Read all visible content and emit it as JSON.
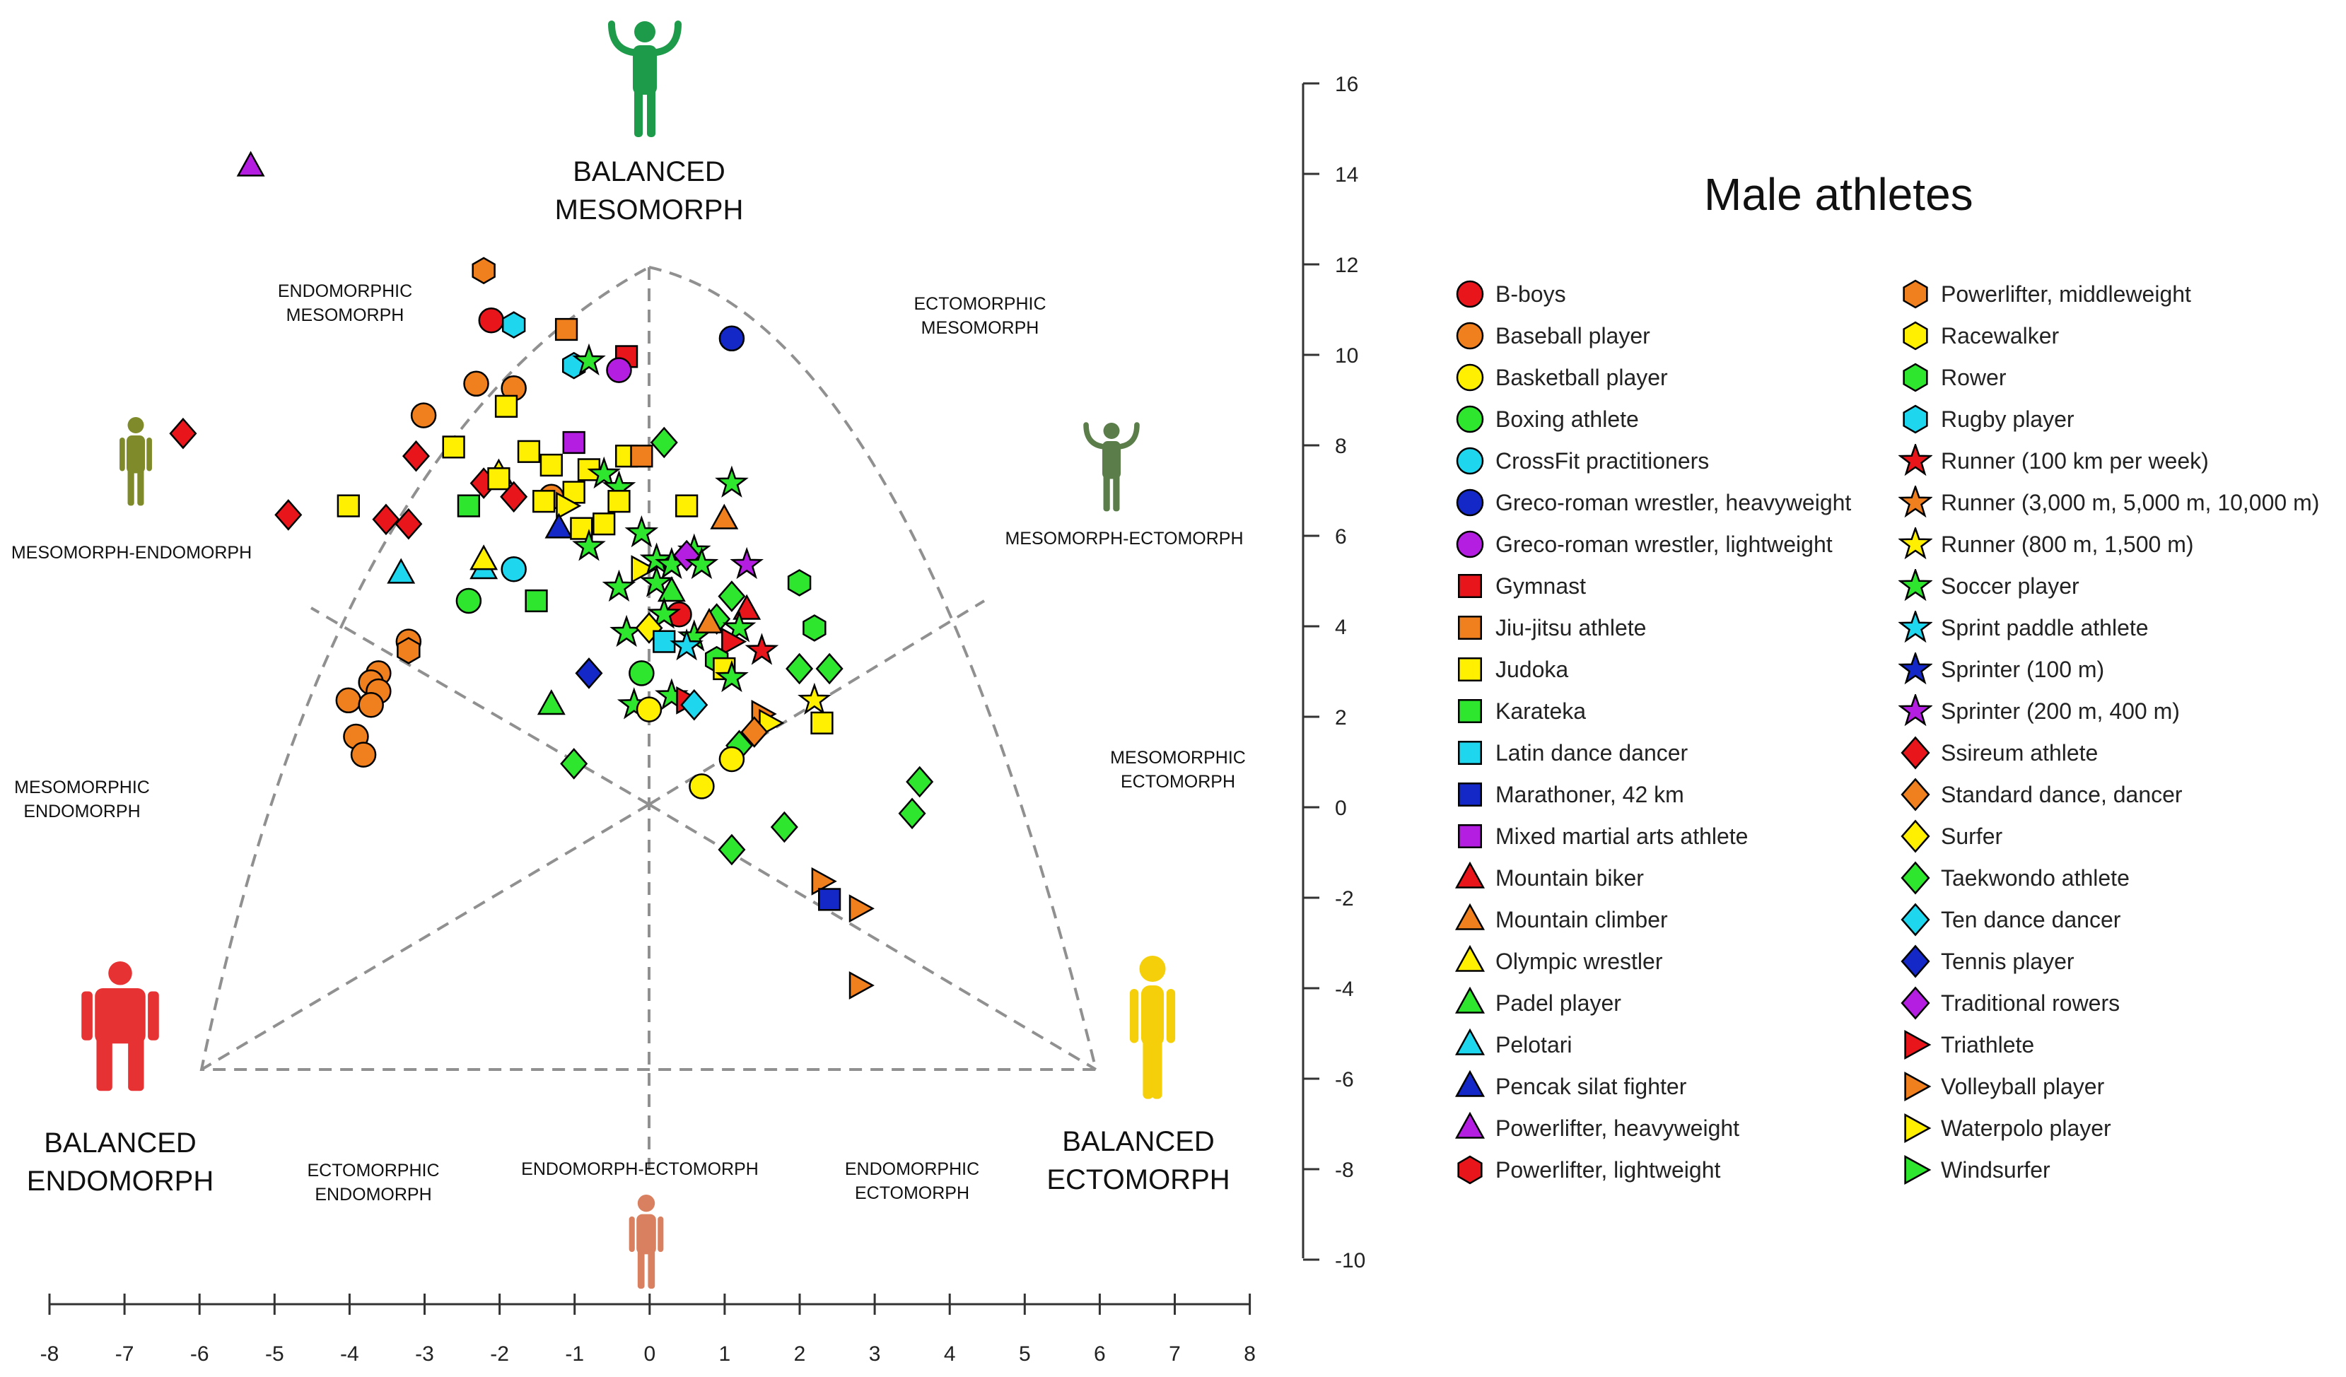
{
  "chart_data": {
    "type": "scatter",
    "title": "Male athletes",
    "xlim": [
      -8,
      8
    ],
    "ylim": [
      -10,
      16
    ],
    "x_ticks": [
      "-8",
      "-7",
      "-6",
      "-5",
      "-4",
      "-3",
      "-2",
      "-1",
      "0",
      "1",
      "2",
      "3",
      "4",
      "5",
      "6",
      "7",
      "8"
    ],
    "y_ticks": [
      "16",
      "14",
      "12",
      "10",
      "8",
      "6",
      "4",
      "2",
      "0",
      "-2",
      "-4",
      "-6",
      "-8",
      "-10"
    ],
    "somatotype_labels": {
      "balanced_mesomorph": [
        "BALANCED",
        "MESOMORPH"
      ],
      "balanced_endomorph": [
        "BALANCED",
        "ENDOMORPH"
      ],
      "balanced_ectomorph": [
        "BALANCED",
        "ECTOMORPH"
      ],
      "endomorphic_mesomorph": [
        "ENDOMORPHIC",
        "MESOMORPH"
      ],
      "ectomorphic_mesomorph": [
        "ECTOMORPHIC",
        "MESOMORPH"
      ],
      "mesomorph_endomorph": "MESOMORPH-ENDOMORPH",
      "mesomorph_ectomorph": "MESOMORPH-ECTOMORPH",
      "mesomorphic_endomorph": [
        "MESOMORPHIC",
        "ENDOMORPH"
      ],
      "mesomorphic_ectomorph": [
        "MESOMORPHIC",
        "ECTOMORPH"
      ],
      "ectomorphic_endomorph": [
        "ECTOMORPHIC",
        "ENDOMORPH"
      ],
      "endomorph_ectomorph": "ENDOMORPH-ECTOMORPH",
      "endomorphic_ectomorph": [
        "ENDOMORPHIC",
        "ECTOMORPH"
      ]
    },
    "figure_colors": {
      "mesomorph": "#1e9b4a",
      "endomorph": "#e63232",
      "ectomorph": "#f5d00a",
      "meso_endo": "#7f8a2a",
      "meso_ecto": "#5a7d4a",
      "endo_ecto": "#d98060"
    },
    "legend": [
      {
        "label": "B-boys",
        "shape": "circle",
        "color": "#e8161b"
      },
      {
        "label": "Baseball player",
        "shape": "circle",
        "color": "#f07f1e"
      },
      {
        "label": "Basketball player",
        "shape": "circle",
        "color": "#ffef00"
      },
      {
        "label": "Boxing athlete",
        "shape": "circle",
        "color": "#2ee62e"
      },
      {
        "label": "CrossFit practitioners",
        "shape": "circle",
        "color": "#1fd6ef"
      },
      {
        "label": "Greco-roman wrestler, heavyweight",
        "shape": "circle",
        "color": "#1428c8"
      },
      {
        "label": "Greco-roman wrestler, lightweight",
        "shape": "circle",
        "color": "#b41ee1"
      },
      {
        "label": "Gymnast",
        "shape": "square",
        "color": "#e8161b"
      },
      {
        "label": "Jiu-jitsu athlete",
        "shape": "square",
        "color": "#f07f1e"
      },
      {
        "label": "Judoka",
        "shape": "square",
        "color": "#ffef00"
      },
      {
        "label": "Karateka",
        "shape": "square",
        "color": "#2ee62e"
      },
      {
        "label": "Latin dance dancer",
        "shape": "square",
        "color": "#1fd6ef"
      },
      {
        "label": "Marathoner, 42 km",
        "shape": "square",
        "color": "#1428c8"
      },
      {
        "label": "Mixed martial arts athlete",
        "shape": "square",
        "color": "#b41ee1"
      },
      {
        "label": "Mountain biker",
        "shape": "triangle",
        "color": "#e8161b"
      },
      {
        "label": "Mountain climber",
        "shape": "triangle",
        "color": "#f07f1e"
      },
      {
        "label": "Olympic wrestler",
        "shape": "triangle",
        "color": "#ffef00"
      },
      {
        "label": "Padel player",
        "shape": "triangle",
        "color": "#2ee62e"
      },
      {
        "label": "Pelotari",
        "shape": "triangle",
        "color": "#1fd6ef"
      },
      {
        "label": "Pencak silat fighter",
        "shape": "triangle",
        "color": "#1428c8"
      },
      {
        "label": "Powerlifter, heavyweight",
        "shape": "triangle",
        "color": "#b41ee1"
      },
      {
        "label": "Powerlifter, lightweight",
        "shape": "hexagon",
        "color": "#e8161b"
      },
      {
        "label": "Powerlifter, middleweight",
        "shape": "hexagon",
        "color": "#f07f1e"
      },
      {
        "label": "Racewalker",
        "shape": "hexagon",
        "color": "#ffef00"
      },
      {
        "label": "Rower",
        "shape": "hexagon",
        "color": "#2ee62e"
      },
      {
        "label": "Rugby player",
        "shape": "hexagon",
        "color": "#1fd6ef"
      },
      {
        "label": "Runner (100 km per week)",
        "shape": "star",
        "color": "#e8161b"
      },
      {
        "label": "Runner (3,000 m, 5,000 m, 10,000 m)",
        "shape": "star",
        "color": "#f07f1e"
      },
      {
        "label": "Runner (800 m, 1,500 m)",
        "shape": "star",
        "color": "#ffef00"
      },
      {
        "label": "Soccer player",
        "shape": "star",
        "color": "#2ee62e"
      },
      {
        "label": "Sprint paddle athlete",
        "shape": "star",
        "color": "#1fd6ef"
      },
      {
        "label": "Sprinter (100 m)",
        "shape": "star",
        "color": "#1428c8"
      },
      {
        "label": "Sprinter (200 m, 400 m)",
        "shape": "star",
        "color": "#b41ee1"
      },
      {
        "label": "Ssireum athlete",
        "shape": "diamond",
        "color": "#e8161b"
      },
      {
        "label": "Standard dance, dancer",
        "shape": "diamond",
        "color": "#f07f1e"
      },
      {
        "label": "Surfer",
        "shape": "diamond",
        "color": "#ffef00"
      },
      {
        "label": "Taekwondo athlete",
        "shape": "diamond",
        "color": "#2ee62e"
      },
      {
        "label": "Ten dance dancer",
        "shape": "diamond",
        "color": "#1fd6ef"
      },
      {
        "label": "Tennis player",
        "shape": "diamond",
        "color": "#1428c8"
      },
      {
        "label": "Traditional rowers",
        "shape": "diamond",
        "color": "#b41ee1"
      },
      {
        "label": "Triathlete",
        "shape": "tri-right",
        "color": "#e8161b"
      },
      {
        "label": "Volleyball player",
        "shape": "tri-right",
        "color": "#f07f1e"
      },
      {
        "label": "Waterpolo player",
        "shape": "tri-right",
        "color": "#ffef00"
      },
      {
        "label": "Windsurfer",
        "shape": "tri-right",
        "color": "#2ee62e"
      }
    ],
    "points": [
      [
        -5.3,
        14.1,
        "triangle",
        "#b41ee1"
      ],
      [
        -2.2,
        11.8,
        "hexagon",
        "#f07f1e"
      ],
      [
        -2.1,
        10.7,
        "circle",
        "#e8161b"
      ],
      [
        -1.8,
        10.6,
        "hexagon",
        "#1fd6ef"
      ],
      [
        -1.1,
        10.5,
        "square",
        "#f07f1e"
      ],
      [
        -1.0,
        9.7,
        "hexagon",
        "#1fd6ef"
      ],
      [
        -0.8,
        9.8,
        "star",
        "#2ee62e"
      ],
      [
        -0.3,
        9.9,
        "square",
        "#e8161b"
      ],
      [
        -0.4,
        9.6,
        "circle",
        "#b41ee1"
      ],
      [
        1.1,
        10.3,
        "circle",
        "#1428c8"
      ],
      [
        -2.3,
        9.3,
        "circle",
        "#f07f1e"
      ],
      [
        -1.8,
        9.2,
        "circle",
        "#f07f1e"
      ],
      [
        -3.0,
        8.6,
        "circle",
        "#f07f1e"
      ],
      [
        -6.2,
        8.2,
        "diamond",
        "#e8161b"
      ],
      [
        -3.1,
        7.7,
        "diamond",
        "#e8161b"
      ],
      [
        -2.6,
        7.9,
        "square",
        "#ffef00"
      ],
      [
        -1.9,
        8.8,
        "square",
        "#ffef00"
      ],
      [
        -1.6,
        7.8,
        "square",
        "#ffef00"
      ],
      [
        -1.0,
        8.0,
        "square",
        "#b41ee1"
      ],
      [
        -1.3,
        7.5,
        "square",
        "#ffef00"
      ],
      [
        -0.8,
        7.4,
        "square",
        "#ffef00"
      ],
      [
        -0.3,
        7.7,
        "square",
        "#ffef00"
      ],
      [
        -0.1,
        7.7,
        "square",
        "#f07f1e"
      ],
      [
        0.2,
        8.0,
        "diamond",
        "#2ee62e"
      ],
      [
        -2.0,
        7.3,
        "triangle",
        "#ffef00"
      ],
      [
        -2.2,
        7.1,
        "diamond",
        "#e8161b"
      ],
      [
        -2.0,
        7.2,
        "square",
        "#ffef00"
      ],
      [
        -1.8,
        6.8,
        "diamond",
        "#e8161b"
      ],
      [
        -1.3,
        6.8,
        "circle",
        "#f07f1e"
      ],
      [
        -1.4,
        6.7,
        "square",
        "#ffef00"
      ],
      [
        -1.0,
        6.9,
        "square",
        "#ffef00"
      ],
      [
        -1.1,
        6.6,
        "tri-right",
        "#ffef00"
      ],
      [
        -0.6,
        7.3,
        "star",
        "#2ee62e"
      ],
      [
        -0.4,
        7.0,
        "star",
        "#2ee62e"
      ],
      [
        -0.4,
        6.7,
        "square",
        "#ffef00"
      ],
      [
        1.1,
        7.1,
        "star",
        "#2ee62e"
      ],
      [
        0.5,
        6.6,
        "square",
        "#ffef00"
      ],
      [
        1.0,
        6.3,
        "triangle",
        "#f07f1e"
      ],
      [
        -2.4,
        6.6,
        "square",
        "#2ee62e"
      ],
      [
        -4.0,
        6.6,
        "square",
        "#ffef00"
      ],
      [
        -4.8,
        6.4,
        "diamond",
        "#e8161b"
      ],
      [
        -3.5,
        6.3,
        "diamond",
        "#e8161b"
      ],
      [
        -3.2,
        6.2,
        "diamond",
        "#e8161b"
      ],
      [
        -1.2,
        6.1,
        "triangle",
        "#1428c8"
      ],
      [
        -0.9,
        6.1,
        "square",
        "#ffef00"
      ],
      [
        -0.6,
        6.2,
        "square",
        "#ffef00"
      ],
      [
        -0.1,
        6.0,
        "star",
        "#2ee62e"
      ],
      [
        -0.8,
        5.7,
        "star",
        "#2ee62e"
      ],
      [
        -3.3,
        5.1,
        "triangle",
        "#1fd6ef"
      ],
      [
        -2.2,
        5.2,
        "triangle",
        "#1fd6ef"
      ],
      [
        -1.8,
        5.2,
        "circle",
        "#1fd6ef"
      ],
      [
        -2.2,
        5.4,
        "triangle",
        "#ffef00"
      ],
      [
        -0.4,
        4.8,
        "star",
        "#2ee62e"
      ],
      [
        -0.1,
        5.2,
        "tri-right",
        "#ffef00"
      ],
      [
        0.1,
        5.4,
        "star",
        "#2ee62e"
      ],
      [
        0.3,
        5.3,
        "star",
        "#2ee62e"
      ],
      [
        0.6,
        5.6,
        "star",
        "#2ee62e"
      ],
      [
        0.5,
        5.5,
        "diamond",
        "#b41ee1"
      ],
      [
        1.3,
        5.3,
        "star",
        "#b41ee1"
      ],
      [
        0.7,
        5.3,
        "star",
        "#2ee62e"
      ],
      [
        2.0,
        4.9,
        "hexagon",
        "#2ee62e"
      ],
      [
        -2.4,
        4.5,
        "circle",
        "#2ee62e"
      ],
      [
        -1.5,
        4.5,
        "square",
        "#2ee62e"
      ],
      [
        0.1,
        4.9,
        "star",
        "#2ee62e"
      ],
      [
        0.3,
        4.7,
        "triangle",
        "#2ee62e"
      ],
      [
        1.1,
        4.6,
        "diamond",
        "#2ee62e"
      ],
      [
        1.3,
        4.3,
        "triangle",
        "#e8161b"
      ],
      [
        0.4,
        4.2,
        "circle",
        "#e8161b"
      ],
      [
        0.2,
        4.2,
        "star",
        "#2ee62e"
      ],
      [
        0.9,
        4.1,
        "diamond",
        "#2ee62e"
      ],
      [
        1.2,
        3.9,
        "star",
        "#2ee62e"
      ],
      [
        -0.3,
        3.8,
        "star",
        "#2ee62e"
      ],
      [
        0.0,
        3.9,
        "diamond",
        "#ffef00"
      ],
      [
        0.6,
        3.7,
        "star",
        "#2ee62e"
      ],
      [
        0.8,
        4.0,
        "triangle",
        "#f07f1e"
      ],
      [
        2.2,
        3.9,
        "hexagon",
        "#2ee62e"
      ],
      [
        -3.2,
        3.6,
        "circle",
        "#f07f1e"
      ],
      [
        -3.2,
        3.4,
        "hexagon",
        "#f07f1e"
      ],
      [
        0.2,
        3.6,
        "square",
        "#1fd6ef"
      ],
      [
        0.5,
        3.5,
        "star",
        "#1fd6ef"
      ],
      [
        1.1,
        3.6,
        "tri-right",
        "#e8161b"
      ],
      [
        1.5,
        3.4,
        "star",
        "#e8161b"
      ],
      [
        0.9,
        3.2,
        "hexagon",
        "#2ee62e"
      ],
      [
        1.0,
        3.0,
        "square",
        "#ffef00"
      ],
      [
        2.0,
        3.0,
        "diamond",
        "#2ee62e"
      ],
      [
        2.4,
        3.0,
        "diamond",
        "#2ee62e"
      ],
      [
        -0.8,
        2.9,
        "diamond",
        "#1428c8"
      ],
      [
        -0.1,
        2.9,
        "circle",
        "#2ee62e"
      ],
      [
        1.1,
        2.8,
        "star",
        "#2ee62e"
      ],
      [
        -3.6,
        2.9,
        "circle",
        "#f07f1e"
      ],
      [
        -3.7,
        2.7,
        "circle",
        "#f07f1e"
      ],
      [
        -3.6,
        2.5,
        "circle",
        "#f07f1e"
      ],
      [
        -4.0,
        2.3,
        "circle",
        "#f07f1e"
      ],
      [
        -3.7,
        2.2,
        "circle",
        "#f07f1e"
      ],
      [
        0.3,
        2.4,
        "star",
        "#2ee62e"
      ],
      [
        0.5,
        2.3,
        "tri-right",
        "#e8161b"
      ],
      [
        0.6,
        2.2,
        "diamond",
        "#1fd6ef"
      ],
      [
        -0.2,
        2.2,
        "star",
        "#2ee62e"
      ],
      [
        0.0,
        2.1,
        "circle",
        "#ffef00"
      ],
      [
        -1.3,
        2.2,
        "triangle",
        "#2ee62e"
      ],
      [
        2.2,
        2.3,
        "star",
        "#ffef00"
      ],
      [
        1.5,
        2.0,
        "tri-right",
        "#f07f1e"
      ],
      [
        1.6,
        1.8,
        "tri-right",
        "#ffef00"
      ],
      [
        2.3,
        1.8,
        "square",
        "#ffef00"
      ],
      [
        1.4,
        1.6,
        "diamond",
        "#f07f1e"
      ],
      [
        1.2,
        1.3,
        "diamond",
        "#2ee62e"
      ],
      [
        -3.9,
        1.5,
        "circle",
        "#f07f1e"
      ],
      [
        -3.8,
        1.1,
        "circle",
        "#f07f1e"
      ],
      [
        1.1,
        1.0,
        "circle",
        "#ffef00"
      ],
      [
        -1.0,
        0.9,
        "diamond",
        "#2ee62e"
      ],
      [
        0.7,
        0.4,
        "circle",
        "#ffef00"
      ],
      [
        3.6,
        0.5,
        "diamond",
        "#2ee62e"
      ],
      [
        3.5,
        -0.2,
        "diamond",
        "#2ee62e"
      ],
      [
        1.8,
        -0.5,
        "diamond",
        "#2ee62e"
      ],
      [
        1.1,
        -1.0,
        "diamond",
        "#2ee62e"
      ],
      [
        2.3,
        -1.7,
        "tri-right",
        "#f07f1e"
      ],
      [
        2.4,
        -2.1,
        "square",
        "#1428c8"
      ],
      [
        2.8,
        -2.3,
        "tri-right",
        "#f07f1e"
      ],
      [
        2.8,
        -4.0,
        "tri-right",
        "#f07f1e"
      ]
    ]
  }
}
